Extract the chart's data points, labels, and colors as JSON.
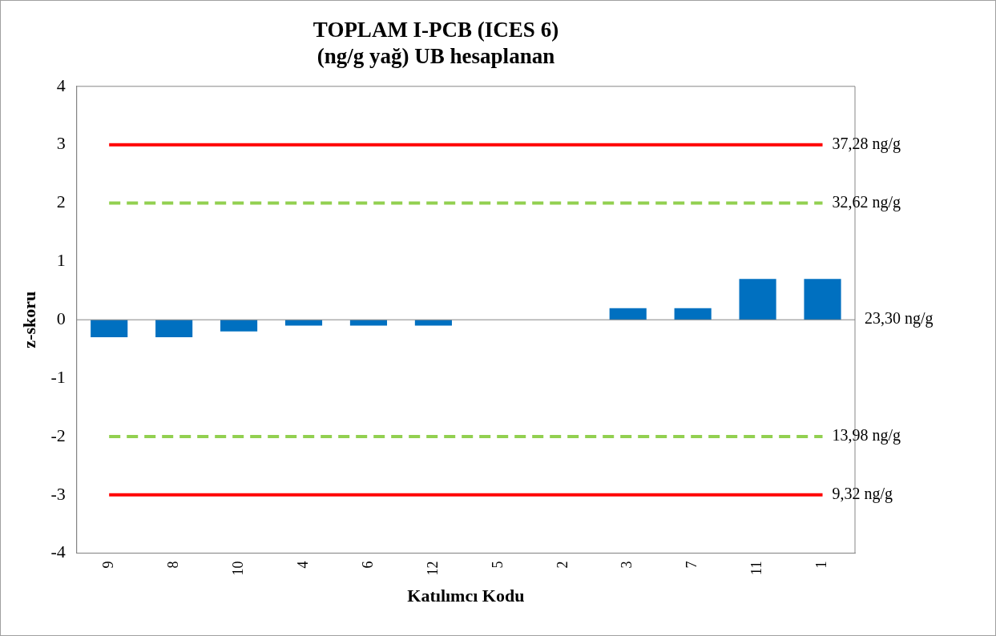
{
  "chart_data": {
    "type": "bar",
    "title": [
      "TOPLAM I-PCB (ICES 6)",
      "(ng/g yağ) UB hesaplanan"
    ],
    "xlabel": "Katılımcı Kodu",
    "ylabel": "z-skoru",
    "categories": [
      "9",
      "8",
      "10",
      "4",
      "6",
      "12",
      "5",
      "2",
      "3",
      "7",
      "11",
      "1"
    ],
    "values": [
      -0.3,
      -0.3,
      -0.2,
      -0.1,
      -0.1,
      -0.1,
      0,
      0,
      0.2,
      0.2,
      0.7,
      0.7
    ],
    "color": "#0070c0",
    "ylim": [
      -4,
      4
    ],
    "yticks": [
      -4,
      -3,
      -2,
      -1,
      0,
      1,
      2,
      3,
      4
    ],
    "grid": false,
    "legend": false,
    "ref_lines": [
      {
        "axis": "y",
        "value": 3,
        "label": "37,28 ng/g",
        "color": "#ff0000",
        "line_style": "solid"
      },
      {
        "axis": "y",
        "value": 2,
        "label": "32,62 ng/g",
        "color": "#92d050",
        "line_style": "dashed"
      },
      {
        "axis": "y",
        "value": 0,
        "label": "23,30 ng/g",
        "color": "#868686",
        "line_style": "solid"
      },
      {
        "axis": "y",
        "value": -2,
        "label": "13,98 ng/g",
        "color": "#92d050",
        "line_style": "dashed"
      },
      {
        "axis": "y",
        "value": -3,
        "label": "9,32 ng/g",
        "color": "#ff0000",
        "line_style": "solid"
      }
    ]
  }
}
